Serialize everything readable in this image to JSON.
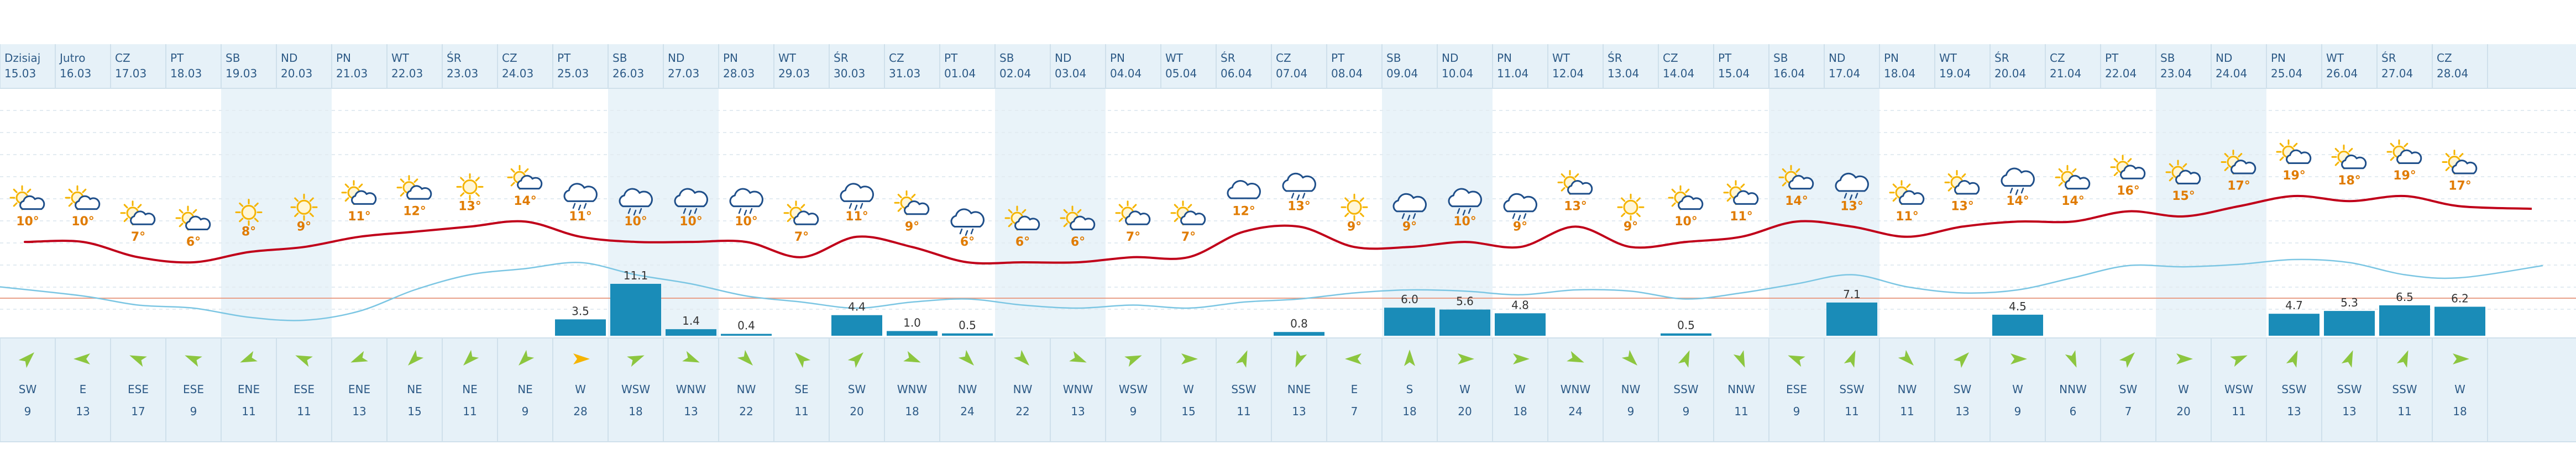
{
  "colors": {
    "header_bg": "#e6f1f8",
    "weekend_bg": "#e9f3f9",
    "border": "#cfe0eb",
    "date_text": "#2d5a86",
    "temp_line": "#c0001a",
    "pressure_line": "#7cc6e3",
    "precip_bar": "#1a8cb8",
    "precip_text": "#333333",
    "zero_line": "#e8a089",
    "temp_label": "#e07b00",
    "sun": "#f5b400",
    "cloud": "#1f4f8a",
    "wind_arrow": "#8cc63f",
    "wind_arrow_strong": "#f5b400",
    "wind_text": "#2d5a86",
    "wind_bg": "#e6f1f8"
  },
  "chart_data": {
    "type": "line",
    "title": "",
    "days": [
      {
        "day": "Dzisiaj",
        "date": "15.03",
        "weekend": false,
        "icon": "sun-cloud",
        "temp": "10°",
        "precip": "",
        "wind_dir": "SW",
        "wind_speed": "9"
      },
      {
        "day": "Jutro",
        "date": "16.03",
        "weekend": false,
        "icon": "sun-cloud",
        "temp": "10°",
        "precip": "",
        "wind_dir": "E",
        "wind_speed": "13"
      },
      {
        "day": "CZ",
        "date": "17.03",
        "weekend": false,
        "icon": "sun-cloud",
        "temp": "7°",
        "precip": "",
        "wind_dir": "ESE",
        "wind_speed": "17"
      },
      {
        "day": "PT",
        "date": "18.03",
        "weekend": false,
        "icon": "sun-cloud",
        "temp": "6°",
        "precip": "",
        "wind_dir": "ESE",
        "wind_speed": "9"
      },
      {
        "day": "SB",
        "date": "19.03",
        "weekend": true,
        "icon": "sun",
        "temp": "8°",
        "precip": "",
        "wind_dir": "ENE",
        "wind_speed": "11"
      },
      {
        "day": "ND",
        "date": "20.03",
        "weekend": true,
        "icon": "sun",
        "temp": "9°",
        "precip": "",
        "wind_dir": "ESE",
        "wind_speed": "11"
      },
      {
        "day": "PN",
        "date": "21.03",
        "weekend": false,
        "icon": "sun-cloud",
        "temp": "11°",
        "precip": "",
        "wind_dir": "ENE",
        "wind_speed": "13"
      },
      {
        "day": "WT",
        "date": "22.03",
        "weekend": false,
        "icon": "sun-cloud",
        "temp": "12°",
        "precip": "",
        "wind_dir": "NE",
        "wind_speed": "15"
      },
      {
        "day": "ŚR",
        "date": "23.03",
        "weekend": false,
        "icon": "sun",
        "temp": "13°",
        "precip": "",
        "wind_dir": "NE",
        "wind_speed": "11"
      },
      {
        "day": "CZ",
        "date": "24.03",
        "weekend": false,
        "icon": "sun-cloud",
        "temp": "14°",
        "precip": "",
        "wind_dir": "NE",
        "wind_speed": "9"
      },
      {
        "day": "PT",
        "date": "25.03",
        "weekend": false,
        "icon": "cloud-rain",
        "temp": "11°",
        "precip": "3.5",
        "wind_dir": "W",
        "wind_speed": "28"
      },
      {
        "day": "SB",
        "date": "26.03",
        "weekend": true,
        "icon": "cloud-rain",
        "temp": "10°",
        "precip": "11.1",
        "wind_dir": "WSW",
        "wind_speed": "18"
      },
      {
        "day": "ND",
        "date": "27.03",
        "weekend": true,
        "icon": "cloud-rain",
        "temp": "10°",
        "precip": "1.4",
        "wind_dir": "WNW",
        "wind_speed": "13"
      },
      {
        "day": "PN",
        "date": "28.03",
        "weekend": false,
        "icon": "cloud-rain",
        "temp": "10°",
        "precip": "0.4",
        "wind_dir": "NW",
        "wind_speed": "22"
      },
      {
        "day": "WT",
        "date": "29.03",
        "weekend": false,
        "icon": "sun-cloud",
        "temp": "7°",
        "precip": "",
        "wind_dir": "SE",
        "wind_speed": "11"
      },
      {
        "day": "ŚR",
        "date": "30.03",
        "weekend": false,
        "icon": "cloud-rain",
        "temp": "11°",
        "precip": "4.4",
        "wind_dir": "SW",
        "wind_speed": "20"
      },
      {
        "day": "CZ",
        "date": "31.03",
        "weekend": false,
        "icon": "sun-cloud",
        "temp": "9°",
        "precip": "1.0",
        "wind_dir": "WNW",
        "wind_speed": "18"
      },
      {
        "day": "PT",
        "date": "01.04",
        "weekend": false,
        "icon": "cloud-rain",
        "temp": "6°",
        "precip": "0.5",
        "wind_dir": "NW",
        "wind_speed": "24"
      },
      {
        "day": "SB",
        "date": "02.04",
        "weekend": true,
        "icon": "sun-cloud",
        "temp": "6°",
        "precip": "",
        "wind_dir": "NW",
        "wind_speed": "22"
      },
      {
        "day": "ND",
        "date": "03.04",
        "weekend": true,
        "icon": "sun-cloud",
        "temp": "6°",
        "precip": "",
        "wind_dir": "WNW",
        "wind_speed": "13"
      },
      {
        "day": "PN",
        "date": "04.04",
        "weekend": false,
        "icon": "sun-cloud",
        "temp": "7°",
        "precip": "",
        "wind_dir": "WSW",
        "wind_speed": "9"
      },
      {
        "day": "WT",
        "date": "05.04",
        "weekend": false,
        "icon": "sun-cloud",
        "temp": "7°",
        "precip": "",
        "wind_dir": "W",
        "wind_speed": "15"
      },
      {
        "day": "ŚR",
        "date": "06.04",
        "weekend": false,
        "icon": "cloud",
        "temp": "12°",
        "precip": "",
        "wind_dir": "SSW",
        "wind_speed": "11"
      },
      {
        "day": "CZ",
        "date": "07.04",
        "weekend": false,
        "icon": "cloud-rain",
        "temp": "13°",
        "precip": "0.8",
        "wind_dir": "NNE",
        "wind_speed": "13"
      },
      {
        "day": "PT",
        "date": "08.04",
        "weekend": false,
        "icon": "sun",
        "temp": "9°",
        "precip": "",
        "wind_dir": "E",
        "wind_speed": "7"
      },
      {
        "day": "SB",
        "date": "09.04",
        "weekend": true,
        "icon": "cloud-rain",
        "temp": "9°",
        "precip": "6.0",
        "wind_dir": "S",
        "wind_speed": "18"
      },
      {
        "day": "ND",
        "date": "10.04",
        "weekend": true,
        "icon": "cloud-rain",
        "temp": "10°",
        "precip": "5.6",
        "wind_dir": "W",
        "wind_speed": "20"
      },
      {
        "day": "PN",
        "date": "11.04",
        "weekend": false,
        "icon": "cloud-rain",
        "temp": "9°",
        "precip": "4.8",
        "wind_dir": "W",
        "wind_speed": "18"
      },
      {
        "day": "WT",
        "date": "12.04",
        "weekend": false,
        "icon": "sun-cloud",
        "temp": "13°",
        "precip": "",
        "wind_dir": "WNW",
        "wind_speed": "24"
      },
      {
        "day": "ŚR",
        "date": "13.04",
        "weekend": false,
        "icon": "sun",
        "temp": "9°",
        "precip": "",
        "wind_dir": "NW",
        "wind_speed": "9"
      },
      {
        "day": "CZ",
        "date": "14.04",
        "weekend": false,
        "icon": "sun-cloud",
        "temp": "10°",
        "precip": "0.5",
        "wind_dir": "SSW",
        "wind_speed": "9"
      },
      {
        "day": "PT",
        "date": "15.04",
        "weekend": false,
        "icon": "sun-cloud",
        "temp": "11°",
        "precip": "",
        "wind_dir": "NNW",
        "wind_speed": "11"
      },
      {
        "day": "SB",
        "date": "16.04",
        "weekend": true,
        "icon": "sun-cloud",
        "temp": "14°",
        "precip": "",
        "wind_dir": "ESE",
        "wind_speed": "9"
      },
      {
        "day": "ND",
        "date": "17.04",
        "weekend": true,
        "icon": "cloud-rain",
        "temp": "13°",
        "precip": "7.1",
        "wind_dir": "SSW",
        "wind_speed": "11"
      },
      {
        "day": "PN",
        "date": "18.04",
        "weekend": false,
        "icon": "sun-cloud",
        "temp": "11°",
        "precip": "",
        "wind_dir": "NW",
        "wind_speed": "11"
      },
      {
        "day": "WT",
        "date": "19.04",
        "weekend": false,
        "icon": "sun-cloud",
        "temp": "13°",
        "precip": "",
        "wind_dir": "SW",
        "wind_speed": "13"
      },
      {
        "day": "ŚR",
        "date": "20.04",
        "weekend": false,
        "icon": "cloud-rain",
        "temp": "14°",
        "precip": "4.5",
        "wind_dir": "W",
        "wind_speed": "9"
      },
      {
        "day": "CZ",
        "date": "21.04",
        "weekend": false,
        "icon": "sun-cloud",
        "temp": "14°",
        "precip": "",
        "wind_dir": "NNW",
        "wind_speed": "6"
      },
      {
        "day": "PT",
        "date": "22.04",
        "weekend": false,
        "icon": "sun-cloud",
        "temp": "16°",
        "precip": "",
        "wind_dir": "SW",
        "wind_speed": "7"
      },
      {
        "day": "SB",
        "date": "23.04",
        "weekend": true,
        "icon": "sun-cloud",
        "temp": "15°",
        "precip": "",
        "wind_dir": "W",
        "wind_speed": "20"
      },
      {
        "day": "ND",
        "date": "24.04",
        "weekend": true,
        "icon": "sun-cloud",
        "temp": "17°",
        "precip": "",
        "wind_dir": "WSW",
        "wind_speed": "11"
      },
      {
        "day": "PN",
        "date": "25.04",
        "weekend": false,
        "icon": "sun-cloud",
        "temp": "19°",
        "precip": "4.7",
        "wind_dir": "SSW",
        "wind_speed": "13"
      },
      {
        "day": "WT",
        "date": "26.04",
        "weekend": false,
        "icon": "sun-cloud",
        "temp": "18°",
        "precip": "5.3",
        "wind_dir": "SSW",
        "wind_speed": "13"
      },
      {
        "day": "ŚR",
        "date": "27.04",
        "weekend": false,
        "icon": "sun-cloud",
        "temp": "19°",
        "precip": "6.5",
        "wind_dir": "SSW",
        "wind_speed": "11"
      },
      {
        "day": "CZ",
        "date": "28.04",
        "weekend": false,
        "icon": "sun-cloud",
        "temp": "17°",
        "precip": "6.2",
        "wind_dir": "W",
        "wind_speed": "18"
      }
    ],
    "temp_scale": {
      "min": 6,
      "max": 19
    },
    "precip_scale": {
      "max": 11.1
    },
    "pressure_trend": [
      0.55,
      0.4,
      0.25,
      0.2,
      0.05,
      0.0,
      0.15,
      0.5,
      0.75,
      0.85,
      0.95,
      0.75,
      0.6,
      0.4,
      0.3,
      0.2,
      0.3,
      0.35,
      0.25,
      0.2,
      0.25,
      0.2,
      0.3,
      0.35,
      0.45,
      0.5,
      0.48,
      0.42,
      0.5,
      0.48,
      0.35,
      0.45,
      0.6,
      0.75,
      0.55,
      0.45,
      0.5,
      0.7,
      0.9,
      0.88,
      0.92,
      1.0,
      0.95,
      0.75,
      0.7,
      0.9
    ],
    "strong_wind_threshold": 25
  }
}
